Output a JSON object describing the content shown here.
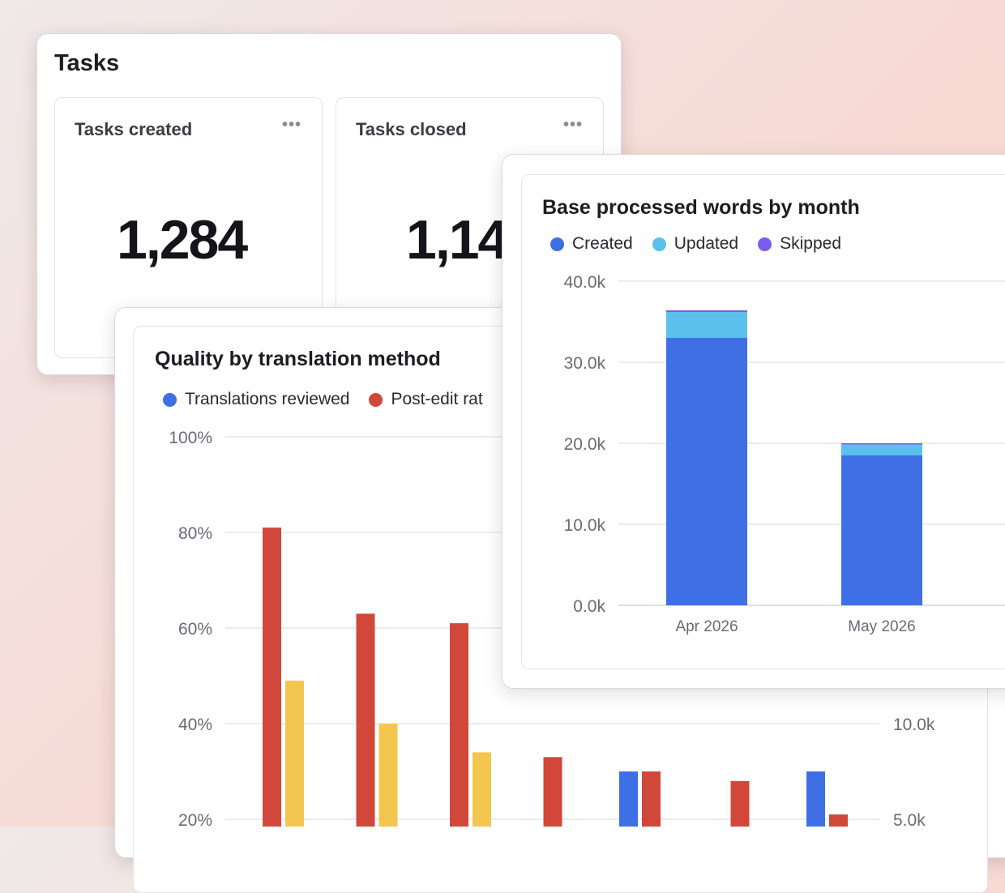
{
  "tasks_panel": {
    "title": "Tasks",
    "created": {
      "label": "Tasks created",
      "menu": "•••",
      "value": "1,284"
    },
    "closed": {
      "label": "Tasks closed",
      "menu": "•••",
      "value": "1,14"
    }
  },
  "colors": {
    "blue": "#3f6fe4",
    "red": "#d1483b",
    "yellow": "#f3c64f",
    "light_blue": "#5bc0ec",
    "purple": "#7b5cf0"
  },
  "chart_data": [
    {
      "type": "bar",
      "title": "Quality by translation method",
      "legend": [
        "Translations reviewed",
        "Post-edit rat"
      ],
      "y_ticks": [
        "100%",
        "80%",
        "60%",
        "40%",
        "20%"
      ],
      "right_y_ticks": [
        "10.0k",
        "5.0k"
      ],
      "ylim": [
        0,
        100
      ],
      "groups": [
        {
          "red": 81,
          "yellow": 49
        },
        {
          "red": 63,
          "yellow": 40
        },
        {
          "red": 61,
          "yellow": 34
        },
        {
          "red": 33
        },
        {
          "blue": 30,
          "red": 30
        },
        {
          "red": 28
        },
        {
          "blue": 30,
          "red": 21
        }
      ]
    },
    {
      "type": "bar",
      "stacked": true,
      "title": "Base processed words by month",
      "legend": [
        "Created",
        "Updated",
        "Skipped"
      ],
      "categories": [
        "Apr 2026",
        "May 2026"
      ],
      "y_ticks": [
        "40.0k",
        "30.0k",
        "20.0k",
        "10.0k",
        "0.0k"
      ],
      "ylim": [
        0,
        40000
      ],
      "series": [
        {
          "name": "Created",
          "values": [
            33000,
            18500
          ]
        },
        {
          "name": "Updated",
          "values": [
            3200,
            1400
          ]
        },
        {
          "name": "Skipped",
          "values": [
            200,
            100
          ]
        }
      ]
    }
  ]
}
